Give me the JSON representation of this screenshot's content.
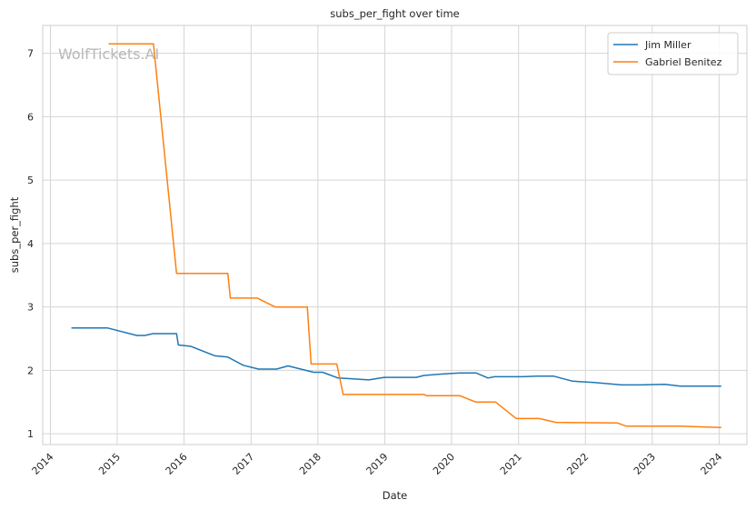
{
  "chart_data": {
    "type": "line",
    "title": "subs_per_fight over time",
    "xlabel": "Date",
    "ylabel": "subs_per_fight",
    "watermark": "WolfTickets.AI",
    "x_ticks": [
      "2014",
      "2015",
      "2016",
      "2017",
      "2018",
      "2019",
      "2020",
      "2021",
      "2022",
      "2023",
      "2024"
    ],
    "y_ticks": [
      1,
      2,
      3,
      4,
      5,
      6,
      7
    ],
    "xlim": [
      "2013-11-20",
      "2024-06-01"
    ],
    "ylim": [
      0.83,
      7.44
    ],
    "grid": true,
    "legend_position": "top-right",
    "series": [
      {
        "name": "Jim Miller",
        "color": "#1f77b4",
        "points": [
          [
            "2014-04-26",
            2.67
          ],
          [
            "2014-11-08",
            2.67
          ],
          [
            "2015-04-18",
            2.55
          ],
          [
            "2015-06-01",
            2.55
          ],
          [
            "2015-07-15",
            2.58
          ],
          [
            "2015-11-21",
            2.58
          ],
          [
            "2015-12-01",
            2.4
          ],
          [
            "2016-02-06",
            2.38
          ],
          [
            "2016-06-18",
            2.23
          ],
          [
            "2016-08-27",
            2.21
          ],
          [
            "2016-11-19",
            2.08
          ],
          [
            "2017-02-11",
            2.02
          ],
          [
            "2017-05-20",
            2.02
          ],
          [
            "2017-07-22",
            2.07
          ],
          [
            "2017-12-09",
            1.97
          ],
          [
            "2018-01-27",
            1.97
          ],
          [
            "2018-04-21",
            1.88
          ],
          [
            "2018-06-23",
            1.87
          ],
          [
            "2018-10-06",
            1.85
          ],
          [
            "2018-12-29",
            1.89
          ],
          [
            "2019-04-20",
            1.89
          ],
          [
            "2019-06-22",
            1.89
          ],
          [
            "2019-08-03",
            1.92
          ],
          [
            "2019-10-26",
            1.94
          ],
          [
            "2020-02-15",
            1.96
          ],
          [
            "2020-05-13",
            1.96
          ],
          [
            "2020-07-18",
            1.88
          ],
          [
            "2020-08-22",
            1.9
          ],
          [
            "2021-01-23",
            1.9
          ],
          [
            "2021-04-10",
            1.91
          ],
          [
            "2021-07-10",
            1.91
          ],
          [
            "2021-10-23",
            1.83
          ],
          [
            "2022-02-19",
            1.81
          ],
          [
            "2022-07-16",
            1.77
          ],
          [
            "2022-10-29",
            1.77
          ],
          [
            "2023-03-11",
            1.78
          ],
          [
            "2023-06-03",
            1.75
          ],
          [
            "2024-01-13",
            1.75
          ]
        ]
      },
      {
        "name": "Gabriel Benitez",
        "color": "#ff7f0e",
        "points": [
          [
            "2014-11-15",
            7.15
          ],
          [
            "2015-07-18",
            7.15
          ],
          [
            "2015-11-21",
            3.53
          ],
          [
            "2016-08-27",
            3.53
          ],
          [
            "2016-09-10",
            3.14
          ],
          [
            "2017-02-04",
            3.14
          ],
          [
            "2017-05-13",
            3.0
          ],
          [
            "2017-11-04",
            3.0
          ],
          [
            "2017-11-25",
            2.1
          ],
          [
            "2018-04-14",
            2.1
          ],
          [
            "2018-05-19",
            1.62
          ],
          [
            "2018-12-01",
            1.62
          ],
          [
            "2019-08-03",
            1.62
          ],
          [
            "2019-08-17",
            1.6
          ],
          [
            "2020-02-15",
            1.6
          ],
          [
            "2020-05-13",
            1.5
          ],
          [
            "2020-08-29",
            1.5
          ],
          [
            "2020-12-19",
            1.24
          ],
          [
            "2021-04-24",
            1.24
          ],
          [
            "2021-07-24",
            1.18
          ],
          [
            "2022-06-25",
            1.17
          ],
          [
            "2022-08-13",
            1.12
          ],
          [
            "2023-01-14",
            1.12
          ],
          [
            "2023-06-03",
            1.12
          ],
          [
            "2024-01-13",
            1.1
          ]
        ]
      }
    ]
  }
}
